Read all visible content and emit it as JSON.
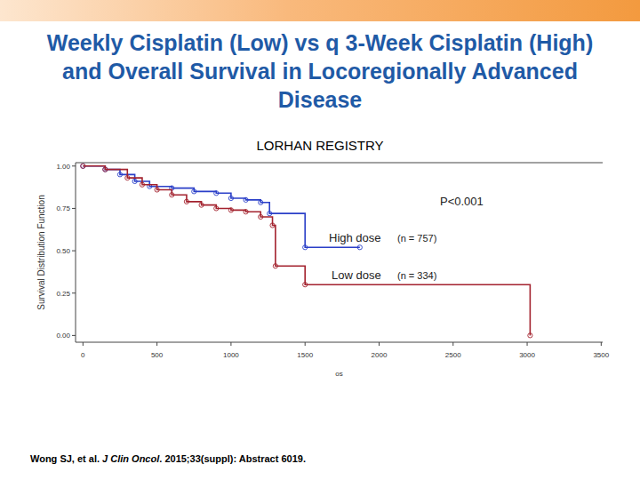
{
  "chart_data": {
    "type": "step",
    "title": "Weekly Cisplatin (Low) vs q 3-Week Cisplatin (High) and Overall Survival in Locoregionally Advanced Disease",
    "subtitle": "LORHAN REGISTRY",
    "x_label": "os",
    "y_label": "Survival Distribution Function",
    "xlim": [
      -50,
      3510
    ],
    "ylim": [
      -0.04,
      1.02
    ],
    "xticks": [
      0,
      500,
      1000,
      1500,
      2000,
      2500,
      3000,
      3500
    ],
    "yticks": [
      {
        "value": 0,
        "label": "0.00"
      },
      {
        "value": 0.25,
        "label": "0.25"
      },
      {
        "value": 0.5,
        "label": "0.50"
      },
      {
        "value": 0.75,
        "label": "0.75"
      },
      {
        "value": 1,
        "label": "1.00"
      }
    ],
    "grid": false,
    "marker": "circle",
    "series": [
      {
        "name": "High dose",
        "color": "#2a3fc8",
        "x": [
          0,
          150,
          250,
          350,
          450,
          600,
          750,
          900,
          1000,
          1100,
          1200,
          1260,
          1500,
          1870
        ],
        "values": [
          1.0,
          0.98,
          0.95,
          0.91,
          0.88,
          0.87,
          0.85,
          0.84,
          0.81,
          0.8,
          0.785,
          0.72,
          0.52,
          0.52
        ]
      },
      {
        "name": "Low dose",
        "color": "#a3222e",
        "x": [
          0,
          150,
          300,
          400,
          500,
          600,
          700,
          800,
          900,
          1000,
          1100,
          1200,
          1280,
          1300,
          1500,
          3020
        ],
        "values": [
          1.0,
          0.98,
          0.93,
          0.89,
          0.86,
          0.83,
          0.79,
          0.77,
          0.75,
          0.74,
          0.73,
          0.7,
          0.65,
          0.41,
          0.3,
          0.0
        ]
      }
    ],
    "annotations": [
      "P<0.001",
      "(n = 757)",
      "(n = 334)"
    ]
  },
  "footnote": [
    "Wong SJ, et al. ",
    "J Clin Oncol",
    ". 2015;33(suppl): Abstract 6019."
  ]
}
